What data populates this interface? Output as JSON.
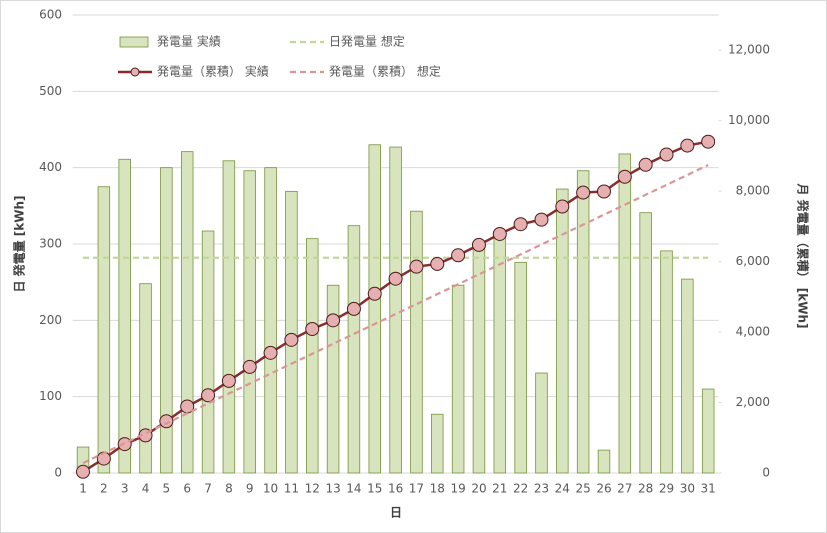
{
  "chart_data": {
    "type": "combo",
    "x_label": "日",
    "y_label": "日 発電量 [kWh]",
    "y2_label": "月 発電量（累積） [kWh]",
    "categories": [
      "1",
      "2",
      "3",
      "4",
      "5",
      "6",
      "7",
      "8",
      "9",
      "10",
      "11",
      "12",
      "13",
      "14",
      "15",
      "16",
      "17",
      "18",
      "19",
      "20",
      "21",
      "22",
      "23",
      "24",
      "25",
      "26",
      "27",
      "28",
      "29",
      "30",
      "31"
    ],
    "ylim": [
      0,
      600
    ],
    "yticks": [
      0,
      100,
      200,
      300,
      400,
      500,
      600
    ],
    "y2lim": [
      0,
      13000
    ],
    "y2ticks": [
      0,
      {
        "value": 2000,
        "label": "2,000"
      },
      {
        "value": 4000,
        "label": "4,000"
      },
      {
        "value": 6000,
        "label": "6,000"
      },
      {
        "value": 8000,
        "label": "8,000"
      },
      {
        "value": 10000,
        "label": "10,000"
      },
      {
        "value": 12000,
        "label": "12,000"
      }
    ],
    "grid": true,
    "series": [
      {
        "name": "発電量 実績",
        "type": "bar",
        "color": "#d7e4bd",
        "values": [
          34,
          375,
          411,
          248,
          400,
          421,
          317,
          409,
          396,
          400,
          369,
          307,
          246,
          324,
          430,
          427,
          343,
          77,
          246,
          295,
          310,
          276,
          131,
          372,
          396,
          30,
          418,
          341,
          291,
          254,
          110
        ]
      },
      {
        "name": "日発電量 想定",
        "type": "line",
        "dashed": true,
        "color": "#c3d69b",
        "values": [
          282,
          282,
          282,
          282,
          282,
          282,
          282,
          282,
          282,
          282,
          282,
          282,
          282,
          282,
          282,
          282,
          282,
          282,
          282,
          282,
          282,
          282,
          282,
          282,
          282,
          282,
          282,
          282,
          282,
          282,
          282
        ]
      },
      {
        "name": "発電量（累積） 実績",
        "type": "line",
        "markers": true,
        "axis": "y2",
        "color": "#8b2c2c",
        "values": [
          34,
          409,
          820,
          1068,
          1468,
          1889,
          2206,
          2615,
          3011,
          3411,
          3780,
          4087,
          4333,
          4657,
          5087,
          5514,
          5857,
          5934,
          6180,
          6475,
          6785,
          7061,
          7192,
          7564,
          7960,
          7990,
          8408,
          8749,
          9040,
          9294,
          9404
        ]
      },
      {
        "name": "発電量（累積） 想定",
        "type": "line",
        "dashed": true,
        "axis": "y2",
        "color": "#d99694",
        "values": [
          282,
          564,
          846,
          1128,
          1410,
          1692,
          1974,
          2256,
          2538,
          2820,
          3102,
          3384,
          3666,
          3948,
          4230,
          4512,
          4794,
          5076,
          5358,
          5640,
          5922,
          6204,
          6486,
          6768,
          7050,
          7332,
          7614,
          7896,
          8178,
          8460,
          8742
        ]
      }
    ]
  }
}
